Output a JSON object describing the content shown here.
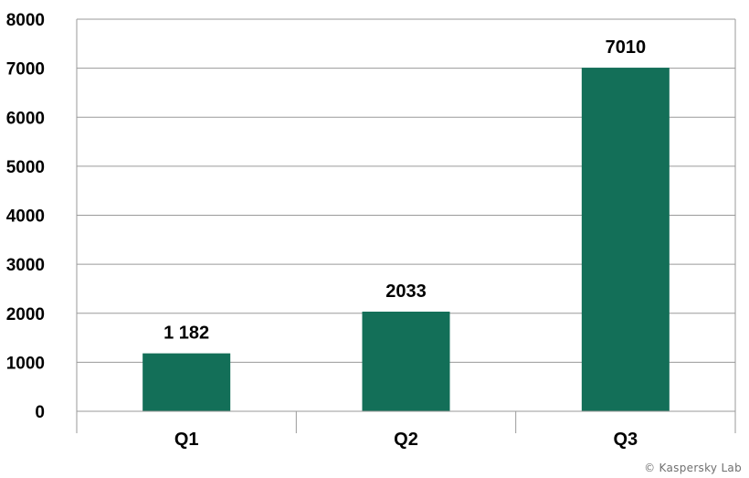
{
  "chart_data": {
    "type": "bar",
    "categories": [
      "Q1",
      "Q2",
      "Q3"
    ],
    "values": [
      1182,
      2033,
      7010
    ],
    "data_labels": [
      "1 182",
      "2033",
      "7010"
    ],
    "yticks": [
      0,
      1000,
      2000,
      3000,
      4000,
      5000,
      6000,
      7000,
      8000
    ],
    "ylim": [
      0,
      8000
    ],
    "title": "",
    "xlabel": "",
    "ylabel": "",
    "grid": true,
    "bar_color": "#136f58",
    "grid_color": "#9a9a9a"
  },
  "footer": {
    "copyright": "© Kaspersky Lab"
  }
}
